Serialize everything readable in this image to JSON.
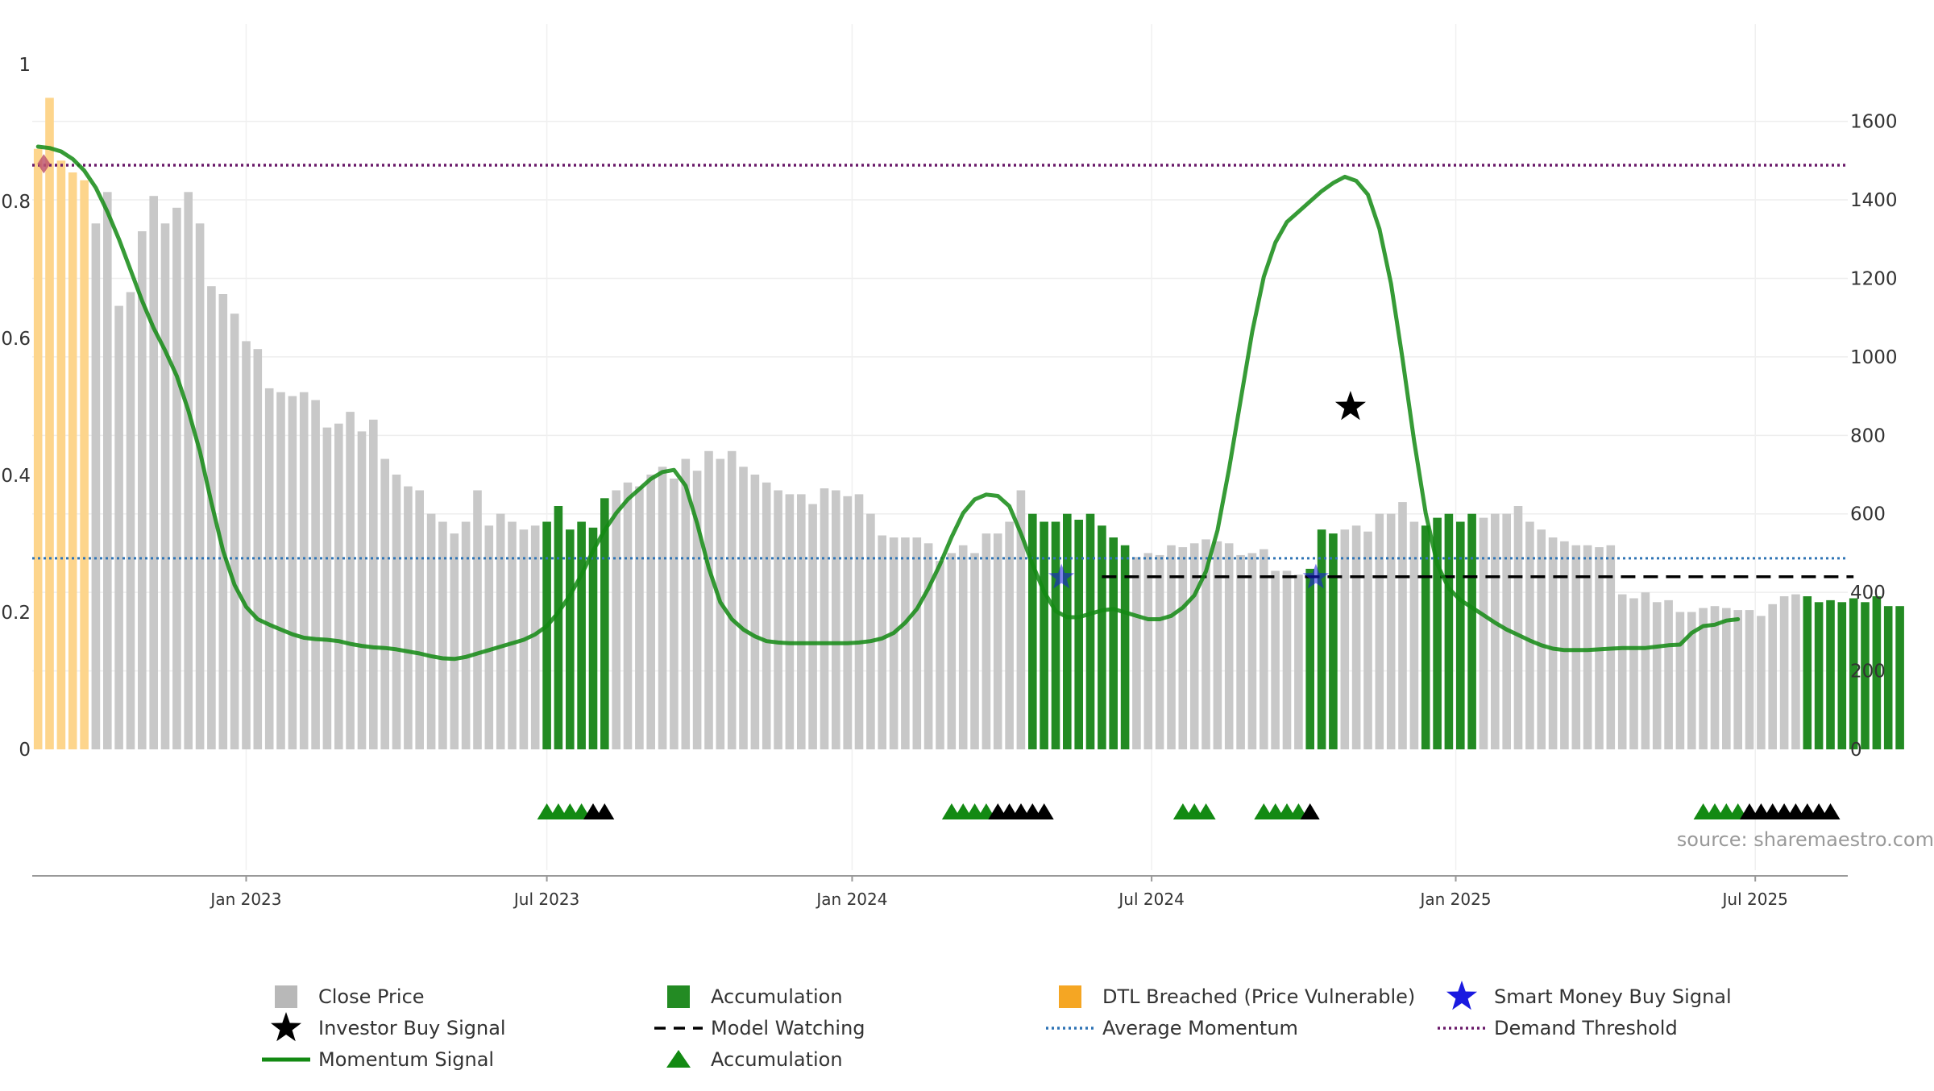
{
  "chart_data": {
    "type": "bar",
    "left_axis": {
      "ticks": [
        "0",
        "0.2",
        "0.4",
        "0.6",
        "0.8",
        "1"
      ],
      "range": [
        0,
        1
      ]
    },
    "right_axis": {
      "ticks": [
        "0",
        "200",
        "400",
        "600",
        "800",
        "1000",
        "1200",
        "1400",
        "1600"
      ],
      "range": [
        0,
        1745
      ]
    },
    "x_ticks": [
      {
        "label": "Jan 2023",
        "week": 18
      },
      {
        "label": "Jul 2023",
        "week": 44
      },
      {
        "label": "Jan 2024",
        "week": 70.4
      },
      {
        "label": "Jul 2024",
        "week": 96.3
      },
      {
        "label": "Jan 2025",
        "week": 122.6
      },
      {
        "label": "Jul 2025",
        "week": 148.5
      }
    ],
    "weeks_total": 157,
    "close_price": [
      1530,
      1660,
      1500,
      1470,
      1450,
      1340,
      1420,
      1130,
      1165,
      1320,
      1410,
      1340,
      1380,
      1420,
      1340,
      1180,
      1160,
      1110,
      1040,
      1020,
      920,
      910,
      900,
      910,
      890,
      820,
      830,
      860,
      810,
      840,
      740,
      700,
      670,
      660,
      600,
      580,
      550,
      580,
      660,
      570,
      600,
      580,
      560,
      570,
      580,
      620,
      560,
      580,
      565,
      640,
      660,
      680,
      670,
      700,
      720,
      690,
      740,
      710,
      760,
      740,
      760,
      720,
      700,
      680,
      660,
      650,
      650,
      625,
      665,
      660,
      645,
      650,
      600,
      545,
      540,
      540,
      540,
      525,
      480,
      500,
      520,
      500,
      550,
      550,
      580,
      660,
      600,
      580,
      580,
      600,
      585,
      600,
      570,
      540,
      520,
      490,
      500,
      495,
      520,
      515,
      525,
      535,
      530,
      525,
      495,
      500,
      510,
      455,
      455,
      445,
      460,
      560,
      550,
      560,
      570,
      555,
      600,
      600,
      630,
      580,
      570,
      590,
      600,
      580,
      600,
      590,
      600,
      600,
      620,
      580,
      560,
      540,
      530,
      520,
      520,
      515,
      520,
      395,
      385,
      400,
      375,
      380,
      350,
      350,
      360,
      365,
      360,
      355,
      355,
      340,
      370,
      390,
      395,
      390,
      375,
      380,
      375,
      385,
      375,
      390,
      365,
      365
    ],
    "price_state": [
      "dtl",
      "dtl",
      "dtl",
      "dtl",
      "dtl",
      "neutral",
      "neutral",
      "neutral",
      "neutral",
      "neutral",
      "neutral",
      "neutral",
      "neutral",
      "neutral",
      "neutral",
      "neutral",
      "neutral",
      "neutral",
      "neutral",
      "neutral",
      "neutral",
      "neutral",
      "neutral",
      "neutral",
      "neutral",
      "neutral",
      "neutral",
      "neutral",
      "neutral",
      "neutral",
      "neutral",
      "neutral",
      "neutral",
      "neutral",
      "neutral",
      "neutral",
      "neutral",
      "neutral",
      "neutral",
      "neutral",
      "neutral",
      "neutral",
      "neutral",
      "neutral",
      "acc",
      "acc",
      "acc",
      "acc",
      "acc",
      "acc",
      "neutral",
      "neutral",
      "neutral",
      "neutral",
      "neutral",
      "neutral",
      "neutral",
      "neutral",
      "neutral",
      "neutral",
      "neutral",
      "neutral",
      "neutral",
      "neutral",
      "neutral",
      "neutral",
      "neutral",
      "neutral",
      "neutral",
      "neutral",
      "neutral",
      "neutral",
      "neutral",
      "neutral",
      "neutral",
      "neutral",
      "neutral",
      "neutral",
      "neutral",
      "neutral",
      "neutral",
      "neutral",
      "neutral",
      "neutral",
      "neutral",
      "neutral",
      "acc",
      "acc",
      "acc",
      "acc",
      "acc",
      "acc",
      "acc",
      "acc",
      "acc",
      "neutral",
      "neutral",
      "neutral",
      "neutral",
      "neutral",
      "neutral",
      "neutral",
      "neutral",
      "neutral",
      "neutral",
      "neutral",
      "neutral",
      "neutral",
      "neutral",
      "neutral",
      "acc",
      "acc",
      "acc",
      "neutral",
      "neutral",
      "neutral",
      "neutral",
      "neutral",
      "neutral",
      "neutral",
      "acc",
      "acc",
      "acc",
      "acc",
      "acc",
      "neutral",
      "neutral",
      "neutral",
      "neutral",
      "neutral",
      "neutral",
      "neutral",
      "neutral",
      "neutral",
      "neutral",
      "neutral",
      "neutral",
      "neutral",
      "neutral",
      "neutral",
      "neutral",
      "neutral",
      "neutral",
      "neutral",
      "neutral",
      "neutral",
      "neutral",
      "neutral",
      "neutral",
      "neutral",
      "neutral",
      "neutral",
      "neutral",
      "acc",
      "acc",
      "acc",
      "acc",
      "acc",
      "acc",
      "acc",
      "acc",
      "acc",
      "acc",
      "acc",
      "acc",
      "acc",
      "neutral"
    ],
    "momentum_signal": [
      [
        0,
        0.88
      ],
      [
        1,
        0.878
      ],
      [
        2,
        0.873
      ],
      [
        3,
        0.862
      ],
      [
        4,
        0.845
      ],
      [
        5,
        0.82
      ],
      [
        6,
        0.785
      ],
      [
        7,
        0.745
      ],
      [
        8,
        0.7
      ],
      [
        9,
        0.655
      ],
      [
        10,
        0.615
      ],
      [
        11,
        0.582
      ],
      [
        12,
        0.545
      ],
      [
        13,
        0.495
      ],
      [
        14,
        0.435
      ],
      [
        15,
        0.36
      ],
      [
        16,
        0.29
      ],
      [
        17,
        0.24
      ],
      [
        18,
        0.208
      ],
      [
        19,
        0.19
      ],
      [
        20,
        0.182
      ],
      [
        21,
        0.175
      ],
      [
        22,
        0.168
      ],
      [
        23,
        0.163
      ],
      [
        24,
        0.161
      ],
      [
        25,
        0.16
      ],
      [
        26,
        0.158
      ],
      [
        27,
        0.154
      ],
      [
        28,
        0.151
      ],
      [
        29,
        0.149
      ],
      [
        30,
        0.148
      ],
      [
        31,
        0.146
      ],
      [
        32,
        0.143
      ],
      [
        33,
        0.14
      ],
      [
        34,
        0.136
      ],
      [
        35,
        0.133
      ],
      [
        36,
        0.132
      ],
      [
        37,
        0.135
      ],
      [
        38,
        0.14
      ],
      [
        39,
        0.145
      ],
      [
        40,
        0.15
      ],
      [
        41,
        0.155
      ],
      [
        42,
        0.16
      ],
      [
        43,
        0.168
      ],
      [
        44,
        0.18
      ],
      [
        45,
        0.2
      ],
      [
        46,
        0.225
      ],
      [
        47,
        0.255
      ],
      [
        48,
        0.29
      ],
      [
        49,
        0.32
      ],
      [
        50,
        0.345
      ],
      [
        51,
        0.365
      ],
      [
        52,
        0.38
      ],
      [
        53,
        0.395
      ],
      [
        54,
        0.405
      ],
      [
        55,
        0.408
      ],
      [
        56,
        0.385
      ],
      [
        57,
        0.33
      ],
      [
        58,
        0.265
      ],
      [
        59,
        0.215
      ],
      [
        60,
        0.19
      ],
      [
        61,
        0.175
      ],
      [
        62,
        0.165
      ],
      [
        63,
        0.158
      ],
      [
        64,
        0.156
      ],
      [
        65,
        0.155
      ],
      [
        66,
        0.155
      ],
      [
        67,
        0.155
      ],
      [
        68,
        0.155
      ],
      [
        69,
        0.155
      ],
      [
        70,
        0.155
      ],
      [
        71,
        0.156
      ],
      [
        72,
        0.158
      ],
      [
        73,
        0.162
      ],
      [
        74,
        0.17
      ],
      [
        75,
        0.185
      ],
      [
        76,
        0.205
      ],
      [
        77,
        0.235
      ],
      [
        78,
        0.27
      ],
      [
        79,
        0.31
      ],
      [
        80,
        0.345
      ],
      [
        81,
        0.365
      ],
      [
        82,
        0.372
      ],
      [
        83,
        0.37
      ],
      [
        84,
        0.355
      ],
      [
        85,
        0.315
      ],
      [
        86,
        0.27
      ],
      [
        87,
        0.23
      ],
      [
        88,
        0.202
      ],
      [
        89,
        0.193
      ],
      [
        90,
        0.193
      ],
      [
        91,
        0.198
      ],
      [
        92,
        0.203
      ],
      [
        93,
        0.205
      ],
      [
        94,
        0.2
      ],
      [
        95,
        0.195
      ],
      [
        96,
        0.19
      ],
      [
        97,
        0.19
      ],
      [
        98,
        0.195
      ],
      [
        99,
        0.207
      ],
      [
        100,
        0.225
      ],
      [
        101,
        0.26
      ],
      [
        102,
        0.32
      ],
      [
        103,
        0.41
      ],
      [
        104,
        0.51
      ],
      [
        105,
        0.61
      ],
      [
        106,
        0.69
      ],
      [
        107,
        0.74
      ],
      [
        108,
        0.77
      ],
      [
        109,
        0.785
      ],
      [
        110,
        0.8
      ],
      [
        111,
        0.815
      ],
      [
        112,
        0.827
      ],
      [
        113,
        0.836
      ],
      [
        114,
        0.83
      ],
      [
        115,
        0.81
      ],
      [
        116,
        0.76
      ],
      [
        117,
        0.68
      ],
      [
        118,
        0.57
      ],
      [
        119,
        0.45
      ],
      [
        120,
        0.345
      ],
      [
        121,
        0.27
      ],
      [
        122,
        0.235
      ],
      [
        123,
        0.218
      ],
      [
        124,
        0.207
      ],
      [
        125,
        0.196
      ],
      [
        126,
        0.185
      ],
      [
        127,
        0.175
      ],
      [
        128,
        0.167
      ],
      [
        129,
        0.159
      ],
      [
        130,
        0.152
      ],
      [
        131,
        0.147
      ],
      [
        132,
        0.145
      ],
      [
        133,
        0.145
      ],
      [
        134,
        0.145
      ],
      [
        135,
        0.146
      ],
      [
        136,
        0.147
      ],
      [
        137,
        0.148
      ],
      [
        138,
        0.148
      ],
      [
        139,
        0.148
      ],
      [
        140,
        0.15
      ],
      [
        141,
        0.152
      ],
      [
        142,
        0.153
      ],
      [
        143,
        0.17
      ],
      [
        144,
        0.18
      ],
      [
        145,
        0.182
      ],
      [
        146,
        0.188
      ],
      [
        147,
        0.19
      ]
    ],
    "average_momentum": 0.279,
    "demand_threshold": 0.853,
    "model_watching": {
      "level": 0.252,
      "start_week": 92,
      "end_week": 157
    },
    "investor_buy_signal": {
      "week": 113.5,
      "value": 0.5
    },
    "smart_money_buy_signals": [
      {
        "week": 88.5,
        "value": 0.251
      },
      {
        "week": 110.5,
        "value": 0.251
      }
    ],
    "dtl_marker": {
      "week": 0.5,
      "value": 0.855
    },
    "accumulation_triangles": [
      {
        "week": 44,
        "color": "green"
      },
      {
        "week": 45,
        "color": "green"
      },
      {
        "week": 46,
        "color": "green"
      },
      {
        "week": 47,
        "color": "green"
      },
      {
        "week": 48,
        "color": "black"
      },
      {
        "week": 49,
        "color": "black"
      },
      {
        "week": 79,
        "color": "green"
      },
      {
        "week": 80,
        "color": "green"
      },
      {
        "week": 81,
        "color": "green"
      },
      {
        "week": 82,
        "color": "green"
      },
      {
        "week": 83,
        "color": "black"
      },
      {
        "week": 84,
        "color": "black"
      },
      {
        "week": 85,
        "color": "black"
      },
      {
        "week": 86,
        "color": "black"
      },
      {
        "week": 87,
        "color": "black"
      },
      {
        "week": 99,
        "color": "green"
      },
      {
        "week": 100,
        "color": "green"
      },
      {
        "week": 101,
        "color": "green"
      },
      {
        "week": 106,
        "color": "green"
      },
      {
        "week": 107,
        "color": "green"
      },
      {
        "week": 108,
        "color": "green"
      },
      {
        "week": 109,
        "color": "green"
      },
      {
        "week": 110,
        "color": "black"
      },
      {
        "week": 144,
        "color": "green"
      },
      {
        "week": 145,
        "color": "green"
      },
      {
        "week": 146,
        "color": "green"
      },
      {
        "week": 147,
        "color": "green"
      },
      {
        "week": 148,
        "color": "black"
      },
      {
        "week": 149,
        "color": "black"
      },
      {
        "week": 150,
        "color": "black"
      },
      {
        "week": 151,
        "color": "black"
      },
      {
        "week": 152,
        "color": "black"
      },
      {
        "week": 153,
        "color": "black"
      },
      {
        "week": 154,
        "color": "black"
      },
      {
        "week": 155,
        "color": "black"
      }
    ],
    "colors": {
      "close_price": "#c8c8c8",
      "accumulation": "#238b23",
      "dtl_breached": "#fdd58c",
      "momentum": "#138a13",
      "average_momentum": "#2f74b5",
      "demand_threshold": "#6a1a6a",
      "model_watching": "#000000",
      "smart_money": "#1a1ae0",
      "investor_buy": "#000000"
    },
    "source_text": "source: sharemaestro.com",
    "legend": [
      {
        "label": "Close Price",
        "symbol": "square",
        "color": "#b8b8b8"
      },
      {
        "label": "Accumulation",
        "symbol": "square",
        "color": "#238b23"
      },
      {
        "label": "DTL Breached (Price Vulnerable)",
        "symbol": "square",
        "color": "#f5a623"
      },
      {
        "label": "Smart Money Buy Signal",
        "symbol": "star",
        "color": "#1a1ae0"
      },
      {
        "label": "Investor Buy Signal",
        "symbol": "star",
        "color": "#000000"
      },
      {
        "label": "Model Watching",
        "symbol": "dash",
        "color": "#000000"
      },
      {
        "label": "Average Momentum",
        "symbol": "dot",
        "color": "#2f74b5"
      },
      {
        "label": "Demand Threshold",
        "symbol": "dot",
        "color": "#6a1a6a"
      },
      {
        "label": "Momentum Signal",
        "symbol": "line",
        "color": "#138a13"
      },
      {
        "label": "Accumulation",
        "symbol": "triangle",
        "color": "#138a13"
      }
    ]
  }
}
